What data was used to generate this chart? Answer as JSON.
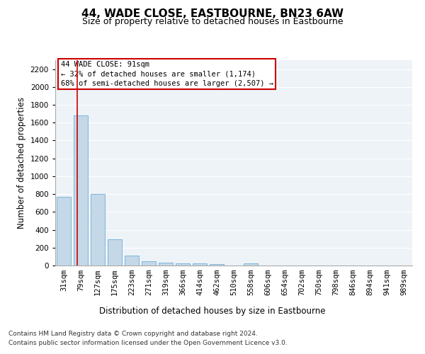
{
  "title": "44, WADE CLOSE, EASTBOURNE, BN23 6AW",
  "subtitle": "Size of property relative to detached houses in Eastbourne",
  "xlabel": "Distribution of detached houses by size in Eastbourne",
  "ylabel": "Number of detached properties",
  "footer_line1": "Contains HM Land Registry data © Crown copyright and database right 2024.",
  "footer_line2": "Contains public sector information licensed under the Open Government Licence v3.0.",
  "categories": [
    "31sqm",
    "79sqm",
    "127sqm",
    "175sqm",
    "223sqm",
    "271sqm",
    "319sqm",
    "366sqm",
    "414sqm",
    "462sqm",
    "510sqm",
    "558sqm",
    "606sqm",
    "654sqm",
    "702sqm",
    "750sqm",
    "798sqm",
    "846sqm",
    "894sqm",
    "941sqm",
    "989sqm"
  ],
  "values": [
    770,
    1680,
    800,
    295,
    115,
    45,
    30,
    25,
    20,
    18,
    0,
    25,
    0,
    0,
    0,
    0,
    0,
    0,
    0,
    0,
    0
  ],
  "bar_color": "#c5d8e8",
  "bar_edge_color": "#6aafd6",
  "red_line_color": "#cc0000",
  "annotation_text_line1": "44 WADE CLOSE: 91sqm",
  "annotation_text_line2": "← 32% of detached houses are smaller (1,174)",
  "annotation_text_line3": "68% of semi-detached houses are larger (2,507) →",
  "annotation_box_color": "#cc0000",
  "ylim": [
    0,
    2300
  ],
  "yticks": [
    0,
    200,
    400,
    600,
    800,
    1000,
    1200,
    1400,
    1600,
    1800,
    2000,
    2200
  ],
  "bg_color": "#eef3f8",
  "grid_color": "#ffffff",
  "title_fontsize": 11,
  "subtitle_fontsize": 9,
  "axis_label_fontsize": 8.5,
  "tick_fontsize": 7.5,
  "annotation_fontsize": 7.5,
  "footer_fontsize": 6.5
}
